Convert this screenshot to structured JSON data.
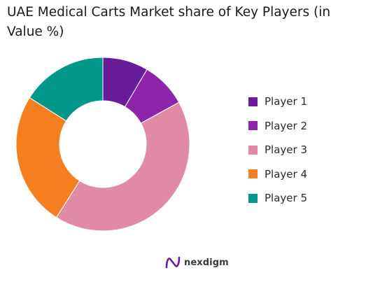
{
  "chart_data": {
    "type": "pie",
    "donut": true,
    "title": "UAE Medical Carts Market share of Key Players (in Value %)",
    "categories": [
      "Player 1",
      "Player 2",
      "Player 3",
      "Player 4",
      "Player 5"
    ],
    "values": [
      8.5,
      8.5,
      42,
      25,
      16
    ],
    "colors": [
      "#6a1b9a",
      "#8e24aa",
      "#e08aa5",
      "#f57f20",
      "#00968a"
    ],
    "legend_position": "right"
  },
  "brand": {
    "name": "nexdigm"
  }
}
